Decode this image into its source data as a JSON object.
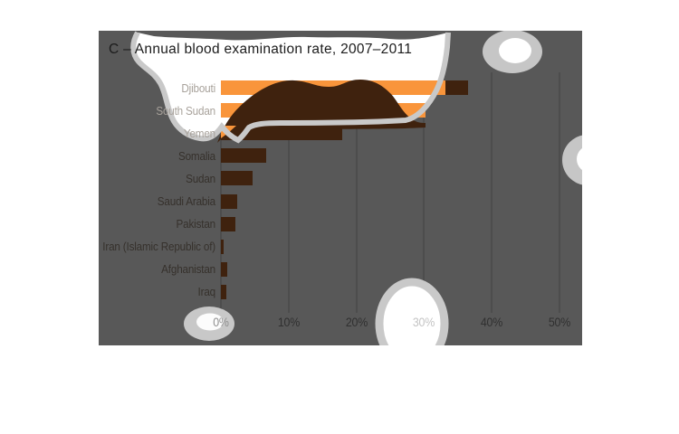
{
  "title": {
    "text": "C – Annual blood examination rate, 2007–2011"
  },
  "chart_data": {
    "type": "bar",
    "orientation": "horizontal",
    "title": "C – Annual blood examination rate, 2007–2011",
    "categories": [
      "Djibouti",
      "South Sudan",
      "Yemen",
      "Somalia",
      "Sudan",
      "Saudi Arabia",
      "Pakistan",
      "Iran (Islamic Republic of)",
      "Afghanistan",
      "Iraq"
    ],
    "values": [
      36.5,
      30.2,
      17.9,
      6.7,
      4.7,
      2.4,
      2.1,
      0.4,
      1.0,
      0.8
    ],
    "unit": "%",
    "xlabel": "",
    "ylabel": "",
    "xlim": [
      0,
      50
    ],
    "x_ticks": [
      "0%",
      "10%",
      "20%",
      "30%",
      "40%",
      "50%"
    ],
    "grid": "vertical",
    "legend": "none",
    "bar_colors": [
      "#f9953b",
      "#f9953b",
      "#3f220e",
      "#3f220e",
      "#3f220e",
      "#3f220e",
      "#3f220e",
      "#3f220e",
      "#3f220e",
      "#3f220e"
    ],
    "highlight_color": "#f9953b",
    "base_color": "#3f220e"
  },
  "occlusion": {
    "panel_color": "#585858",
    "blob_white": "#ffffff",
    "blob_ring": "#c9c9c9",
    "blob_brown": "#3f220e"
  }
}
